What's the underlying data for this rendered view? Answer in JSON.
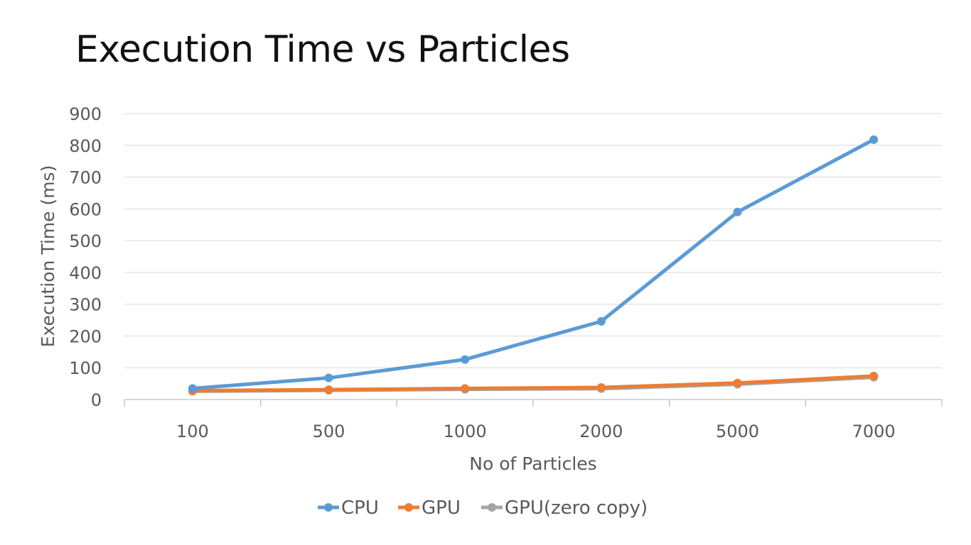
{
  "chart_data": {
    "type": "line",
    "title": "Execution Time vs Particles",
    "xlabel": "No of Particles",
    "ylabel": "Execution Time (ms)",
    "categories": [
      "100",
      "500",
      "1000",
      "2000",
      "5000",
      "7000"
    ],
    "ylim": [
      0,
      900
    ],
    "yticks": [
      0,
      100,
      200,
      300,
      400,
      500,
      600,
      700,
      800,
      900
    ],
    "grid": true,
    "legend_position": "bottom",
    "series": [
      {
        "name": "CPU",
        "color": "#5B9BD5",
        "values": [
          35,
          68,
          126,
          246,
          590,
          818
        ]
      },
      {
        "name": "GPU",
        "color": "#ED7D31",
        "values": [
          28,
          31,
          35,
          38,
          52,
          74
        ]
      },
      {
        "name": "GPU(zero copy)",
        "color": "#A5A5A5",
        "values": [
          26,
          29,
          32,
          34,
          48,
          70
        ]
      }
    ]
  }
}
